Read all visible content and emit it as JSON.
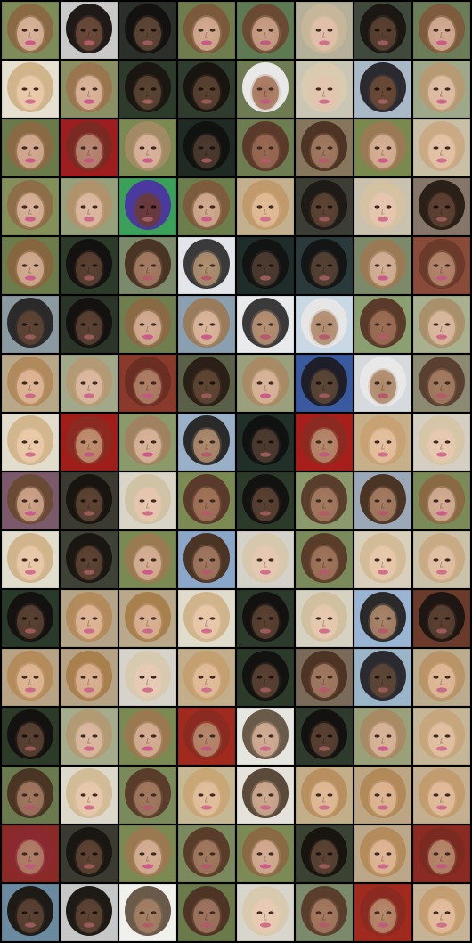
{
  "grid": {
    "rows": 16,
    "columns": 8,
    "tiles": [
      {
        "tone": "fair",
        "bg": "#7e8c5a",
        "hair": "#8a6a44",
        "skin": "#d9b39b",
        "lip": "#cc5a8a"
      },
      {
        "tone": "dark",
        "bg": "#c9c9c9",
        "hair": "#1f1a17",
        "skin": "#6b4a3a",
        "lip": "#b45a6a"
      },
      {
        "tone": "dark",
        "bg": "#2b2f2a",
        "hair": "#141210",
        "skin": "#5e4636",
        "lip": "#9a5a5a"
      },
      {
        "tone": "fair",
        "bg": "#6f7c4e",
        "hair": "#7b5a3c",
        "skin": "#d3ab92",
        "lip": "#c85a88"
      },
      {
        "tone": "fair",
        "bg": "#5e7a52",
        "hair": "#6b4a34",
        "skin": "#caa086",
        "lip": "#c05a7e"
      },
      {
        "tone": "fair",
        "bg": "#b5b09a",
        "hair": "#c7b79a",
        "skin": "#e1c0a8",
        "lip": "#d0708a"
      },
      {
        "tone": "dark",
        "bg": "#3f4a3c",
        "hair": "#1b1814",
        "skin": "#5a4231",
        "lip": "#9b5a5e"
      },
      {
        "tone": "fair",
        "bg": "#6a7d58",
        "hair": "#7d5b3c",
        "skin": "#d4ad94",
        "lip": "#cc5a8a"
      },
      {
        "tone": "fair",
        "bg": "#e6e0d0",
        "hair": "#d0b48c",
        "skin": "#ebcaa9",
        "lip": "#d0708a"
      },
      {
        "tone": "fair",
        "bg": "#8a9064",
        "hair": "#9a7650",
        "skin": "#dcb49a",
        "lip": "#cc5a8a"
      },
      {
        "tone": "dark",
        "bg": "#2d3b2a",
        "hair": "#1a1712",
        "skin": "#5c4432",
        "lip": "#a0605e"
      },
      {
        "tone": "dark",
        "bg": "#2e3b2d",
        "hair": "#181410",
        "skin": "#5a4231",
        "lip": "#9a5a5a"
      },
      {
        "tone": "mid",
        "bg": "#6d7a52",
        "hair": "#e8e8e8",
        "skin": "#a6765a",
        "lip": "#c05a7e"
      },
      {
        "tone": "fair",
        "bg": "#c9c6b6",
        "hair": "#d9cbb0",
        "skin": "#e3c4ae",
        "lip": "#d0708a"
      },
      {
        "tone": "dark",
        "bg": "#aab9c8",
        "hair": "#2a2a30",
        "skin": "#6a4a36",
        "lip": "#a0605e"
      },
      {
        "tone": "fair",
        "bg": "#9ea88a",
        "hair": "#b59a74",
        "skin": "#dfbda3",
        "lip": "#cc6a8a"
      },
      {
        "tone": "fair",
        "bg": "#6a7a4a",
        "hair": "#8a6a44",
        "skin": "#d3aa90",
        "lip": "#cc5a8a"
      },
      {
        "tone": "mid",
        "bg": "#9c1e1e",
        "hair": "#7a2a22",
        "skin": "#b98872",
        "lip": "#c05a7e"
      },
      {
        "tone": "fair",
        "bg": "#7a8a52",
        "hair": "#a28a64",
        "skin": "#d9b39b",
        "lip": "#cc5a8a"
      },
      {
        "tone": "dark",
        "bg": "#1e2a22",
        "hair": "#101210",
        "skin": "#4c3a2e",
        "lip": "#9a5a5a"
      },
      {
        "tone": "mid",
        "bg": "#6e7c52",
        "hair": "#5a3a2a",
        "skin": "#9a6a52",
        "lip": "#b45a6a"
      },
      {
        "tone": "mid",
        "bg": "#86765e",
        "hair": "#4e3424",
        "skin": "#a27a62",
        "lip": "#b45a6a"
      },
      {
        "tone": "fair",
        "bg": "#7a8a4e",
        "hair": "#9a7a54",
        "skin": "#d6af95",
        "lip": "#cc5a8a"
      },
      {
        "tone": "fair",
        "bg": "#c8bfa6",
        "hair": "#c9aa84",
        "skin": "#e4c2a6",
        "lip": "#d0708a"
      },
      {
        "tone": "fair",
        "bg": "#84905a",
        "hair": "#8e6e48",
        "skin": "#d8b299",
        "lip": "#cc5a8a"
      },
      {
        "tone": "fair",
        "bg": "#96a07a",
        "hair": "#b0926c",
        "skin": "#dcb8a0",
        "lip": "#cc6a8a"
      },
      {
        "tone": "dark",
        "bg": "#3aa05a",
        "hair": "#4a3aa0",
        "skin": "#6a3a3a",
        "lip": "#a0605e"
      },
      {
        "tone": "fair",
        "bg": "#6c7e4c",
        "hair": "#7c5c3c",
        "skin": "#d2aa90",
        "lip": "#cc5a8a"
      },
      {
        "tone": "fair",
        "bg": "#c2b08e",
        "hair": "#c09a6a",
        "skin": "#e2bb98",
        "lip": "#d0708a"
      },
      {
        "tone": "dark",
        "bg": "#3c3e36",
        "hair": "#1e1a16",
        "skin": "#5e4434",
        "lip": "#9a5a5a"
      },
      {
        "tone": "fair",
        "bg": "#c8c2ae",
        "hair": "#d4c2a2",
        "skin": "#e6c6ae",
        "lip": "#d0708a"
      },
      {
        "tone": "dark",
        "bg": "#86766a",
        "hair": "#2a2018",
        "skin": "#5e4232",
        "lip": "#9a5a5a"
      },
      {
        "tone": "fair",
        "bg": "#6c7c4a",
        "hair": "#86663e",
        "skin": "#d2ab92",
        "lip": "#cc5a8a"
      },
      {
        "tone": "dark",
        "bg": "#2c3a2a",
        "hair": "#141210",
        "skin": "#5a4232",
        "lip": "#9a5a5a"
      },
      {
        "tone": "mid",
        "bg": "#7a8a6a",
        "hair": "#4a3424",
        "skin": "#a67c64",
        "lip": "#b45a6a"
      },
      {
        "tone": "mid",
        "bg": "#e2e6ea",
        "hair": "#3a3a3a",
        "skin": "#b09070",
        "lip": "#b45a6a"
      },
      {
        "tone": "dark",
        "bg": "#1e2c2a",
        "hair": "#121414",
        "skin": "#4e3c30",
        "lip": "#9a5a5a"
      },
      {
        "tone": "dark",
        "bg": "#2a3a3a",
        "hair": "#141616",
        "skin": "#564234",
        "lip": "#9a5a5a"
      },
      {
        "tone": "fair",
        "bg": "#7c8a6a",
        "hair": "#9a7a54",
        "skin": "#d4af96",
        "lip": "#cc5a8a"
      },
      {
        "tone": "mid",
        "bg": "#8a4a3a",
        "hair": "#6a3a2a",
        "skin": "#b4866c",
        "lip": "#c05a7e"
      },
      {
        "tone": "dark",
        "bg": "#8a9aa0",
        "hair": "#2a2a2a",
        "skin": "#5e4434",
        "lip": "#9a5a5a"
      },
      {
        "tone": "dark",
        "bg": "#2a3428",
        "hair": "#141210",
        "skin": "#5a4232",
        "lip": "#9a5a5a"
      },
      {
        "tone": "fair",
        "bg": "#6e7e4e",
        "hair": "#8a6a44",
        "skin": "#d4ad94",
        "lip": "#cc5a8a"
      },
      {
        "tone": "fair",
        "bg": "#8aa0b0",
        "hair": "#9a7c5c",
        "skin": "#dab69c",
        "lip": "#cc5a8a"
      },
      {
        "tone": "mid",
        "bg": "#e8eaec",
        "hair": "#3a3a3a",
        "skin": "#b89274",
        "lip": "#b45a6a"
      },
      {
        "tone": "mid",
        "bg": "#c8d8e4",
        "hair": "#e6e6e6",
        "skin": "#b08a6c",
        "lip": "#b45a6a"
      },
      {
        "tone": "mid",
        "bg": "#8aa070",
        "hair": "#5a3a2a",
        "skin": "#9e6e56",
        "lip": "#b45a6a"
      },
      {
        "tone": "fair",
        "bg": "#a8b090",
        "hair": "#a8906a",
        "skin": "#dab8a0",
        "lip": "#cc6a8a"
      },
      {
        "tone": "fair",
        "bg": "#b8a888",
        "hair": "#b08a5c",
        "skin": "#deb696",
        "lip": "#cc6a8a"
      },
      {
        "tone": "fair",
        "bg": "#a2a88a",
        "hair": "#b49a74",
        "skin": "#dcb9a0",
        "lip": "#cc6a8a"
      },
      {
        "tone": "mid",
        "bg": "#8a3a2a",
        "hair": "#6a2e22",
        "skin": "#b08068",
        "lip": "#c05a7e"
      },
      {
        "tone": "dark",
        "bg": "#5a6048",
        "hair": "#2a2018",
        "skin": "#604634",
        "lip": "#9a5a5a"
      },
      {
        "tone": "fair",
        "bg": "#9aa07c",
        "hair": "#a88a64",
        "skin": "#d8b49a",
        "lip": "#cc5a8a"
      },
      {
        "tone": "dark",
        "bg": "#3a5aa0",
        "hair": "#1e1e28",
        "skin": "#5c4636",
        "lip": "#9a5a5a"
      },
      {
        "tone": "mid",
        "bg": "#d6dadc",
        "hair": "#e8e8e8",
        "skin": "#ae8868",
        "lip": "#b45a6a"
      },
      {
        "tone": "mid",
        "bg": "#8c8a72",
        "hair": "#5a4030",
        "skin": "#a47c62",
        "lip": "#b45a6a"
      },
      {
        "tone": "fair",
        "bg": "#e2dccc",
        "hair": "#d2b68e",
        "skin": "#ebcaaa",
        "lip": "#d0708a"
      },
      {
        "tone": "mid",
        "bg": "#a01e1a",
        "hair": "#8a2a20",
        "skin": "#c09070",
        "lip": "#c05a7e"
      },
      {
        "tone": "fair",
        "bg": "#8a9a6a",
        "hair": "#a08260",
        "skin": "#d8b49a",
        "lip": "#cc5a8a"
      },
      {
        "tone": "mid",
        "bg": "#9ab0c8",
        "hair": "#2a2a2a",
        "skin": "#b08c6e",
        "lip": "#b45a6a"
      },
      {
        "tone": "dark",
        "bg": "#203028",
        "hair": "#101212",
        "skin": "#4e3c30",
        "lip": "#9a5a5a"
      },
      {
        "tone": "mid",
        "bg": "#a81e1a",
        "hair": "#8a2a20",
        "skin": "#b68a6c",
        "lip": "#c05a7e"
      },
      {
        "tone": "fair",
        "bg": "#c6b08a",
        "hair": "#c8a274",
        "skin": "#e4c09e",
        "lip": "#d0708a"
      },
      {
        "tone": "fair",
        "bg": "#d4cfc2",
        "hair": "#d6c6a8",
        "skin": "#e8c8b0",
        "lip": "#d0708a"
      },
      {
        "tone": "fair",
        "bg": "#7a5a6a",
        "hair": "#6a4a34",
        "skin": "#cea48a",
        "lip": "#cc5a8a"
      },
      {
        "tone": "dark",
        "bg": "#3a3a30",
        "hair": "#181410",
        "skin": "#5e4434",
        "lip": "#9a5a5a"
      },
      {
        "tone": "fair",
        "bg": "#d8d4c6",
        "hair": "#d0c2a4",
        "skin": "#e6c6ae",
        "lip": "#d0708a"
      },
      {
        "tone": "mid",
        "bg": "#7a8a52",
        "hair": "#5a3a2a",
        "skin": "#a2745a",
        "lip": "#b45a6a"
      },
      {
        "tone": "dark",
        "bg": "#2c3a2a",
        "hair": "#121210",
        "skin": "#5a4232",
        "lip": "#9a5a5a"
      },
      {
        "tone": "mid",
        "bg": "#8a9a6c",
        "hair": "#5a3e2c",
        "skin": "#a47a60",
        "lip": "#b45a6a"
      },
      {
        "tone": "mid",
        "bg": "#9aa8b8",
        "hair": "#4a3424",
        "skin": "#a67c62",
        "lip": "#b45a6a"
      },
      {
        "tone": "fair",
        "bg": "#7a8a58",
        "hair": "#8a6a44",
        "skin": "#d4ad94",
        "lip": "#cc5a8a"
      },
      {
        "tone": "fair",
        "bg": "#e2dece",
        "hair": "#d0b48c",
        "skin": "#eac8aa",
        "lip": "#d0708a"
      },
      {
        "tone": "dark",
        "bg": "#3e4236",
        "hair": "#1a1612",
        "skin": "#5e4434",
        "lip": "#9a5a5a"
      },
      {
        "tone": "fair",
        "bg": "#7a8a52",
        "hair": "#9a7a50",
        "skin": "#d6af95",
        "lip": "#cc5a8a"
      },
      {
        "tone": "mid",
        "bg": "#8aa6c8",
        "hair": "#4a3424",
        "skin": "#a27860",
        "lip": "#b45a6a"
      },
      {
        "tone": "fair",
        "bg": "#d4d2c8",
        "hair": "#d6c8ac",
        "skin": "#e6c8b2",
        "lip": "#d0708a"
      },
      {
        "tone": "mid",
        "bg": "#7a8a5a",
        "hair": "#5a3c2a",
        "skin": "#a0765c",
        "lip": "#b45a6a"
      },
      {
        "tone": "fair",
        "bg": "#d8d0bc",
        "hair": "#d2bc98",
        "skin": "#e8c8ac",
        "lip": "#d0708a"
      },
      {
        "tone": "fair",
        "bg": "#cac2a8",
        "hair": "#c8aa84",
        "skin": "#e2c0a4",
        "lip": "#d0708a"
      },
      {
        "tone": "dark",
        "bg": "#2a3a2a",
        "hair": "#141210",
        "skin": "#5a4232",
        "lip": "#9a5a5a"
      },
      {
        "tone": "fair",
        "bg": "#b4a488",
        "hair": "#b28a5c",
        "skin": "#deb696",
        "lip": "#cc6a8a"
      },
      {
        "tone": "fair",
        "bg": "#baa88a",
        "hair": "#a8804e",
        "skin": "#dab294",
        "lip": "#cc6a8a"
      },
      {
        "tone": "fair",
        "bg": "#e0dccc",
        "hair": "#d0b48c",
        "skin": "#eac8aa",
        "lip": "#d0708a"
      },
      {
        "tone": "dark",
        "bg": "#2c3a2c",
        "hair": "#141210",
        "skin": "#5a4232",
        "lip": "#9a5a5a"
      },
      {
        "tone": "fair",
        "bg": "#d6d2c2",
        "hair": "#d0c0a0",
        "skin": "#e6c8ae",
        "lip": "#d0708a"
      },
      {
        "tone": "mid",
        "bg": "#9ab4d4",
        "hair": "#2a2a2a",
        "skin": "#ac866a",
        "lip": "#b45a6a"
      },
      {
        "tone": "dark",
        "bg": "#6a3a2a",
        "hair": "#1e1612",
        "skin": "#5c4232",
        "lip": "#9a5a5a"
      },
      {
        "tone": "fair",
        "bg": "#b8a484",
        "hair": "#b48c5c",
        "skin": "#deb694",
        "lip": "#cc6a8a"
      },
      {
        "tone": "fair",
        "bg": "#b6a284",
        "hair": "#a8804e",
        "skin": "#dab292",
        "lip": "#cc6a8a"
      },
      {
        "tone": "fair",
        "bg": "#d6d4ca",
        "hair": "#d8cab0",
        "skin": "#e8cab4",
        "lip": "#d0708a"
      },
      {
        "tone": "fair",
        "bg": "#c2ae8a",
        "hair": "#c4a070",
        "skin": "#e2bc9a",
        "lip": "#d0708a"
      },
      {
        "tone": "dark",
        "bg": "#2c3a2a",
        "hair": "#121210",
        "skin": "#5a4232",
        "lip": "#9a5a5a"
      },
      {
        "tone": "mid",
        "bg": "#7a6a5a",
        "hair": "#4e3424",
        "skin": "#a27a62",
        "lip": "#b45a6a"
      },
      {
        "tone": "dark",
        "bg": "#9ab4c8",
        "hair": "#2a2a30",
        "skin": "#5e4636",
        "lip": "#9a5a5a"
      },
      {
        "tone": "fair",
        "bg": "#bcac8e",
        "hair": "#b89468",
        "skin": "#dfb898",
        "lip": "#cc6a8a"
      },
      {
        "tone": "dark",
        "bg": "#2c3a28",
        "hair": "#141210",
        "skin": "#5a4232",
        "lip": "#9a5a5a"
      },
      {
        "tone": "fair",
        "bg": "#a4ac8c",
        "hair": "#b29a74",
        "skin": "#dcb9a0",
        "lip": "#cc6a8a"
      },
      {
        "tone": "fair",
        "bg": "#7a8a52",
        "hair": "#9a7850",
        "skin": "#d6af95",
        "lip": "#cc5a8a"
      },
      {
        "tone": "mid",
        "bg": "#a02a1e",
        "hair": "#8a2a20",
        "skin": "#b68a6c",
        "lip": "#c05a7e"
      },
      {
        "tone": "fair",
        "bg": "#e6e6e0",
        "hair": "#6a5a4a",
        "skin": "#d2ae94",
        "lip": "#cc6a8a"
      },
      {
        "tone": "dark",
        "bg": "#2e3a2c",
        "hair": "#141210",
        "skin": "#5a4232",
        "lip": "#9a5a5a"
      },
      {
        "tone": "fair",
        "bg": "#9aa078",
        "hair": "#a88a64",
        "skin": "#d8b49a",
        "lip": "#cc5a8a"
      },
      {
        "tone": "fair",
        "bg": "#c4b696",
        "hair": "#c6a67c",
        "skin": "#e2c0a2",
        "lip": "#d0708a"
      },
      {
        "tone": "mid",
        "bg": "#6a7a4e",
        "hair": "#4a3424",
        "skin": "#a27860",
        "lip": "#b45a6a"
      },
      {
        "tone": "fair",
        "bg": "#dcd8ca",
        "hair": "#d2bc98",
        "skin": "#e8c8ac",
        "lip": "#d0708a"
      },
      {
        "tone": "mid",
        "bg": "#7a8a5a",
        "hair": "#5a3c2a",
        "skin": "#a27a60",
        "lip": "#b45a6a"
      },
      {
        "tone": "fair",
        "bg": "#c6b894",
        "hair": "#c8a676",
        "skin": "#e2c09e",
        "lip": "#d0708a"
      },
      {
        "tone": "fair",
        "bg": "#e4e2da",
        "hair": "#5a4a3a",
        "skin": "#d0ac92",
        "lip": "#cc6a8a"
      },
      {
        "tone": "fair",
        "bg": "#c2ae88",
        "hair": "#b89060",
        "skin": "#e0ba98",
        "lip": "#d0708a"
      },
      {
        "tone": "fair",
        "bg": "#bca684",
        "hair": "#b28a5a",
        "skin": "#deb694",
        "lip": "#cc6a8a"
      },
      {
        "tone": "fair",
        "bg": "#c4b090",
        "hair": "#c09c6e",
        "skin": "#e2bc9c",
        "lip": "#d0708a"
      },
      {
        "tone": "mid",
        "bg": "#8a2a26",
        "hair": "#8a2a30",
        "skin": "#b08068",
        "lip": "#c05a7e"
      },
      {
        "tone": "dark",
        "bg": "#3a3a30",
        "hair": "#1a1612",
        "skin": "#5e4434",
        "lip": "#9a5a5a"
      },
      {
        "tone": "fair",
        "bg": "#7a8a52",
        "hair": "#9a7850",
        "skin": "#d6af95",
        "lip": "#cc5a8a"
      },
      {
        "tone": "mid",
        "bg": "#7a8a5e",
        "hair": "#5a3c2a",
        "skin": "#a27a60",
        "lip": "#b45a6a"
      },
      {
        "tone": "fair",
        "bg": "#7c8a56",
        "hair": "#8a6a44",
        "skin": "#d4ad94",
        "lip": "#cc5a8a"
      },
      {
        "tone": "dark",
        "bg": "#3a4232",
        "hair": "#181410",
        "skin": "#5c4434",
        "lip": "#9a5a5a"
      },
      {
        "tone": "fair",
        "bg": "#bca888",
        "hair": "#b48c5c",
        "skin": "#deb696",
        "lip": "#cc6a8a"
      },
      {
        "tone": "mid",
        "bg": "#8a2a22",
        "hair": "#7a2a20",
        "skin": "#b68a6c",
        "lip": "#c05a7e"
      },
      {
        "tone": "dark",
        "bg": "#6a8aa0",
        "hair": "#1e1a16",
        "skin": "#5a4232",
        "lip": "#9a5a5a"
      },
      {
        "tone": "dark",
        "bg": "#c6c8c8",
        "hair": "#1e1a16",
        "skin": "#5e4434",
        "lip": "#9a5a5a"
      },
      {
        "tone": "mid",
        "bg": "#f0f0ec",
        "hair": "#6a5a4a",
        "skin": "#a48064",
        "lip": "#b45a6a"
      },
      {
        "tone": "mid",
        "bg": "#6a7a4a",
        "hair": "#4e3424",
        "skin": "#a07660",
        "lip": "#b45a6a"
      },
      {
        "tone": "fair",
        "bg": "#d8d6cc",
        "hair": "#d8caae",
        "skin": "#e8cab2",
        "lip": "#d0708a"
      },
      {
        "tone": "mid",
        "bg": "#7a8a6a",
        "hair": "#5a3e2c",
        "skin": "#a47a60",
        "lip": "#b45a6a"
      },
      {
        "tone": "mid",
        "bg": "#a02a1e",
        "hair": "#8a2a20",
        "skin": "#b68a6c",
        "lip": "#c05a7e"
      },
      {
        "tone": "fair",
        "bg": "#c6b294",
        "hair": "#c49e70",
        "skin": "#e2bc9c",
        "lip": "#d0708a"
      }
    ]
  }
}
